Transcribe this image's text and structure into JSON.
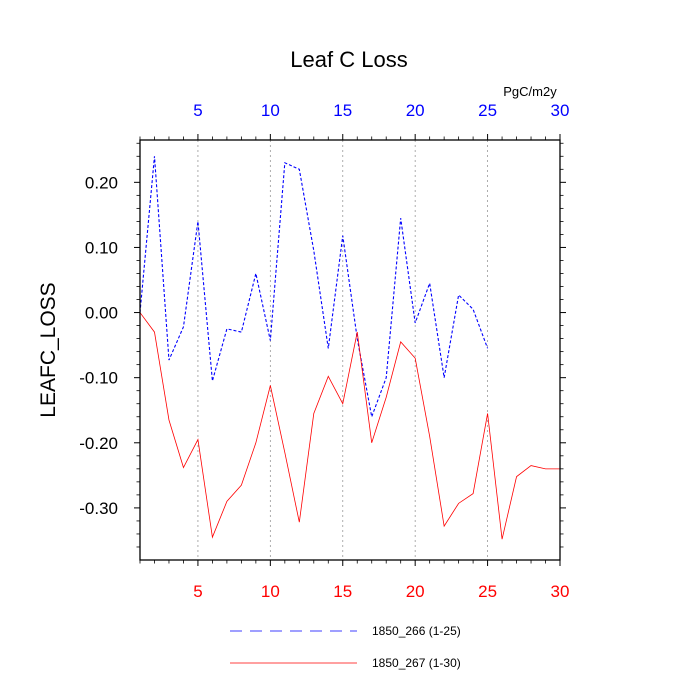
{
  "chart_data": {
    "type": "line",
    "title": "Leaf C Loss",
    "ylabel": "LEAFC_LOSS",
    "units_label": "PgC/m2y",
    "ylim": [
      -0.38,
      0.265
    ],
    "y_ticks": [
      0.2,
      0.1,
      0.0,
      -0.1,
      -0.2,
      -0.3
    ],
    "y_tick_labels": [
      "0.20",
      "0.10",
      "0.00",
      "-0.10",
      "-0.20",
      "-0.30"
    ],
    "x_bottom": {
      "range": [
        1,
        30
      ],
      "ticks": [
        5,
        10,
        15,
        20,
        25,
        30
      ],
      "tick_labels": [
        "5",
        "10",
        "15",
        "20",
        "25",
        "30"
      ],
      "color": "#ff0000"
    },
    "x_top": {
      "range": [
        1,
        30
      ],
      "ticks": [
        5,
        10,
        15,
        20,
        25,
        30
      ],
      "tick_labels": [
        "5",
        "10",
        "15",
        "20",
        "25",
        "30"
      ],
      "color": "#0000ff"
    },
    "vertical_grid": [
      5,
      10,
      15,
      20,
      25
    ],
    "series": [
      {
        "name": "1850_266 (1-25)",
        "color": "#0000ff",
        "dash": "dashed",
        "x": [
          1,
          2,
          3,
          4,
          5,
          6,
          7,
          8,
          9,
          10,
          11,
          12,
          13,
          14,
          15,
          16,
          17,
          18,
          19,
          20,
          21,
          22,
          23,
          24,
          25
        ],
        "values": [
          0.0,
          0.24,
          -0.073,
          -0.022,
          0.14,
          -0.105,
          -0.025,
          -0.03,
          0.06,
          -0.043,
          0.23,
          0.22,
          0.095,
          -0.055,
          0.118,
          -0.04,
          -0.16,
          -0.1,
          0.145,
          -0.016,
          0.045,
          -0.1,
          0.027,
          0.005,
          -0.055
        ]
      },
      {
        "name": "1850_267 (1-30)",
        "color": "#ff0000",
        "dash": "solid",
        "x": [
          1,
          2,
          3,
          4,
          5,
          6,
          7,
          8,
          9,
          10,
          11,
          12,
          13,
          14,
          15,
          16,
          17,
          18,
          19,
          20,
          21,
          22,
          23,
          24,
          25,
          26,
          27,
          28,
          29,
          30
        ],
        "values": [
          0.0,
          -0.03,
          -0.165,
          -0.238,
          -0.195,
          -0.345,
          -0.29,
          -0.265,
          -0.2,
          -0.112,
          -0.215,
          -0.322,
          -0.155,
          -0.098,
          -0.14,
          -0.03,
          -0.2,
          -0.13,
          -0.045,
          -0.07,
          -0.19,
          -0.328,
          -0.293,
          -0.278,
          -0.155,
          -0.348,
          -0.252,
          -0.235,
          -0.24,
          -0.24
        ]
      }
    ],
    "legend_position": "bottom"
  }
}
